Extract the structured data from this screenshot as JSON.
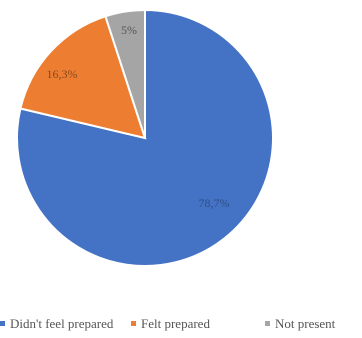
{
  "chart_data": {
    "type": "pie",
    "slices": [
      {
        "label": "Did not feel prepared",
        "value": 78.7,
        "display": "78,7%",
        "color": "#4472C4"
      },
      {
        "label": "Felt prepared",
        "value": 16.3,
        "display": "16,3%",
        "color": "#ED7D31"
      },
      {
        "label": "Not present",
        "value": 5,
        "display": "5%",
        "color": "#A5A5A5"
      }
    ],
    "legend": {
      "placement": "bottom",
      "items": [
        "Didn't feel prepared",
        "Felt prepared",
        "Not present"
      ]
    },
    "start_angle_deg": 0,
    "direction": "counterclockwise",
    "order_from_top": [
      "Not present",
      "Felt prepared",
      "Did not feel prepared"
    ]
  }
}
